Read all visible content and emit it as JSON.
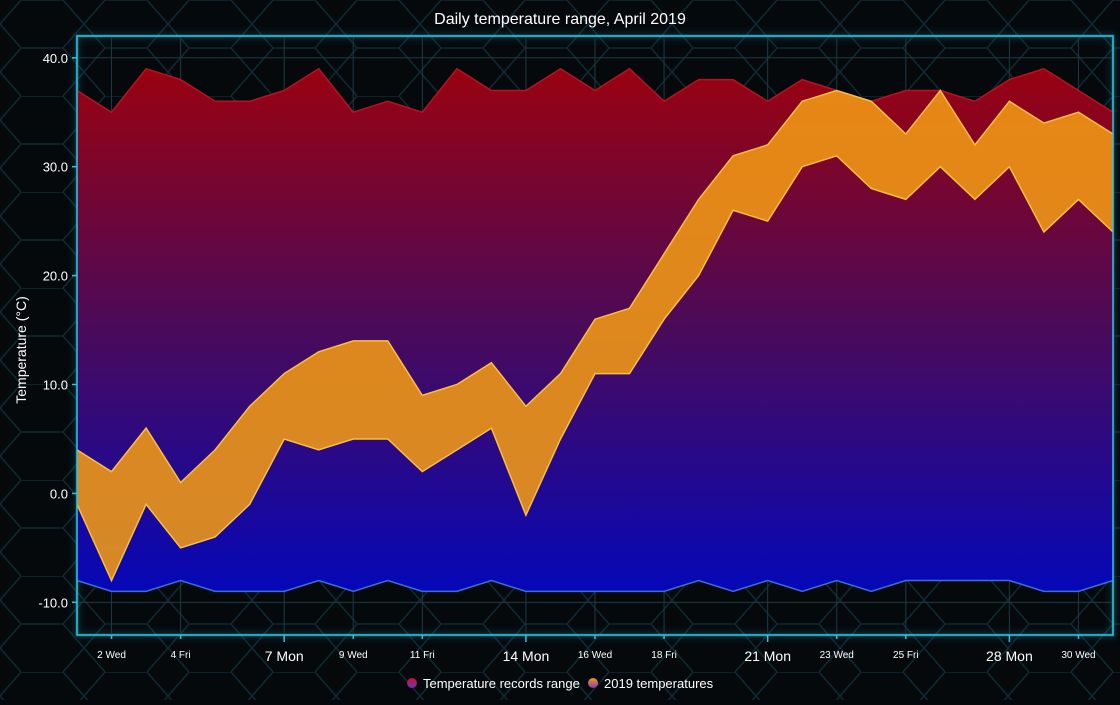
{
  "chart_data": {
    "type": "area",
    "title": "Daily temperature range, April 2019",
    "xlabel": "",
    "ylabel": "Temperature (°C)",
    "ylim": [
      -13,
      42
    ],
    "yticks": [
      "40.0",
      "30.0",
      "20.0",
      "10.0",
      "0.0",
      "-10.0"
    ],
    "ytick_values": [
      40,
      30,
      20,
      10,
      0,
      -10
    ],
    "xlim": [
      1,
      31
    ],
    "xticks": [
      {
        "day": 2,
        "label": "2 Wed",
        "major": false
      },
      {
        "day": 4,
        "label": "4 Fri",
        "major": false
      },
      {
        "day": 7,
        "label": "7 Mon",
        "major": true
      },
      {
        "day": 9,
        "label": "9 Wed",
        "major": false
      },
      {
        "day": 11,
        "label": "11 Fri",
        "major": false
      },
      {
        "day": 14,
        "label": "14 Mon",
        "major": true
      },
      {
        "day": 16,
        "label": "16 Wed",
        "major": false
      },
      {
        "day": 18,
        "label": "18 Fri",
        "major": false
      },
      {
        "day": 21,
        "label": "21 Mon",
        "major": true
      },
      {
        "day": 23,
        "label": "23 Wed",
        "major": false
      },
      {
        "day": 25,
        "label": "25 Fri",
        "major": false
      },
      {
        "day": 28,
        "label": "28 Mon",
        "major": true
      },
      {
        "day": 30,
        "label": "30 Wed",
        "major": false
      }
    ],
    "x": [
      1,
      2,
      3,
      4,
      5,
      6,
      7,
      8,
      9,
      10,
      11,
      12,
      13,
      14,
      15,
      16,
      17,
      18,
      19,
      20,
      21,
      22,
      23,
      24,
      25,
      26,
      27,
      28,
      29,
      30,
      31
    ],
    "series": [
      {
        "name": "Temperature records range",
        "low": [
          -8,
          -9,
          -9,
          -8,
          -9,
          -9,
          -9,
          -8,
          -9,
          -8,
          -9,
          -9,
          -8,
          -9,
          -9,
          -9,
          -9,
          -9,
          -8,
          -9,
          -8,
          -9,
          -8,
          -9,
          -8,
          -8,
          -8,
          -8,
          -9,
          -9,
          -8
        ],
        "high": [
          37,
          35,
          39,
          38,
          36,
          36,
          37,
          39,
          35,
          36,
          35,
          39,
          37,
          37,
          39,
          37,
          39,
          36,
          38,
          38,
          36,
          38,
          37,
          36,
          37,
          37,
          36,
          38,
          39,
          37,
          35
        ]
      },
      {
        "name": "2019 temperatures",
        "low": [
          -1,
          -8,
          -1,
          -5,
          -4,
          -1,
          5,
          4,
          5,
          5,
          2,
          4,
          6,
          -2,
          5,
          11,
          11,
          16,
          20,
          26,
          25,
          30,
          31,
          28,
          27,
          30,
          27,
          30,
          24,
          27,
          24
        ],
        "high": [
          4,
          2,
          6,
          1,
          4,
          8,
          11,
          13,
          14,
          14,
          9,
          10,
          12,
          8,
          11,
          16,
          17,
          22,
          27,
          31,
          32,
          36,
          37,
          36,
          33,
          37,
          32,
          36,
          34,
          35,
          33
        ]
      }
    ],
    "legend": {
      "position": "bottom-center",
      "entries": [
        "Temperature records range",
        "2019 temperatures"
      ]
    },
    "grid": true,
    "colors": {
      "records_top": "#9a0210",
      "records_mid": "#4a0a5a",
      "records_bottom": "#0508b8",
      "records_line": "#3a6fd8",
      "temps_fill": "#f29a14",
      "temps_line": "#f7bf45",
      "axis": "#2ec4e0",
      "grid": "#1f3a44",
      "text": "#ffffff"
    }
  }
}
